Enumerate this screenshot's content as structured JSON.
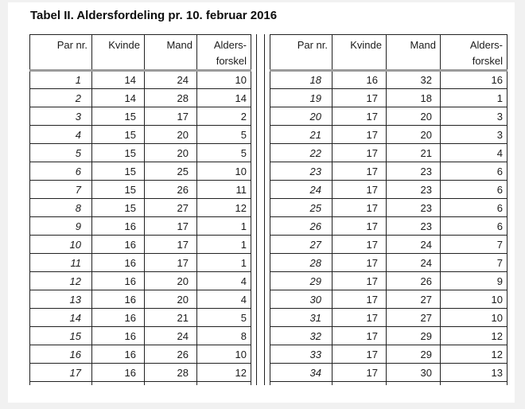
{
  "page": {
    "title": "Tabel II. Aldersfordeling pr. 10. februar 2016"
  },
  "table": {
    "column_headers": {
      "par": "Par nr.",
      "kvinde": "Kvinde",
      "mand": "Mand",
      "aldersforskel_line1": "Alders-",
      "aldersforskel_line2": "forskel"
    },
    "left_rows": [
      [
        1,
        14,
        24,
        10
      ],
      [
        2,
        14,
        28,
        14
      ],
      [
        3,
        15,
        17,
        2
      ],
      [
        4,
        15,
        20,
        5
      ],
      [
        5,
        15,
        20,
        5
      ],
      [
        6,
        15,
        25,
        10
      ],
      [
        7,
        15,
        26,
        11
      ],
      [
        8,
        15,
        27,
        12
      ],
      [
        9,
        16,
        17,
        1
      ],
      [
        10,
        16,
        17,
        1
      ],
      [
        11,
        16,
        17,
        1
      ],
      [
        12,
        16,
        20,
        4
      ],
      [
        13,
        16,
        20,
        4
      ],
      [
        14,
        16,
        21,
        5
      ],
      [
        15,
        16,
        24,
        8
      ],
      [
        16,
        16,
        26,
        10
      ],
      [
        17,
        16,
        28,
        12
      ]
    ],
    "right_rows": [
      [
        18,
        16,
        32,
        16
      ],
      [
        19,
        17,
        18,
        1
      ],
      [
        20,
        17,
        20,
        3
      ],
      [
        21,
        17,
        20,
        3
      ],
      [
        22,
        17,
        21,
        4
      ],
      [
        23,
        17,
        23,
        6
      ],
      [
        24,
        17,
        23,
        6
      ],
      [
        25,
        17,
        23,
        6
      ],
      [
        26,
        17,
        23,
        6
      ],
      [
        27,
        17,
        24,
        7
      ],
      [
        28,
        17,
        24,
        7
      ],
      [
        29,
        17,
        26,
        9
      ],
      [
        30,
        17,
        27,
        10
      ],
      [
        31,
        17,
        27,
        10
      ],
      [
        32,
        17,
        29,
        12
      ],
      [
        33,
        17,
        29,
        12
      ],
      [
        34,
        17,
        30,
        13
      ]
    ]
  }
}
